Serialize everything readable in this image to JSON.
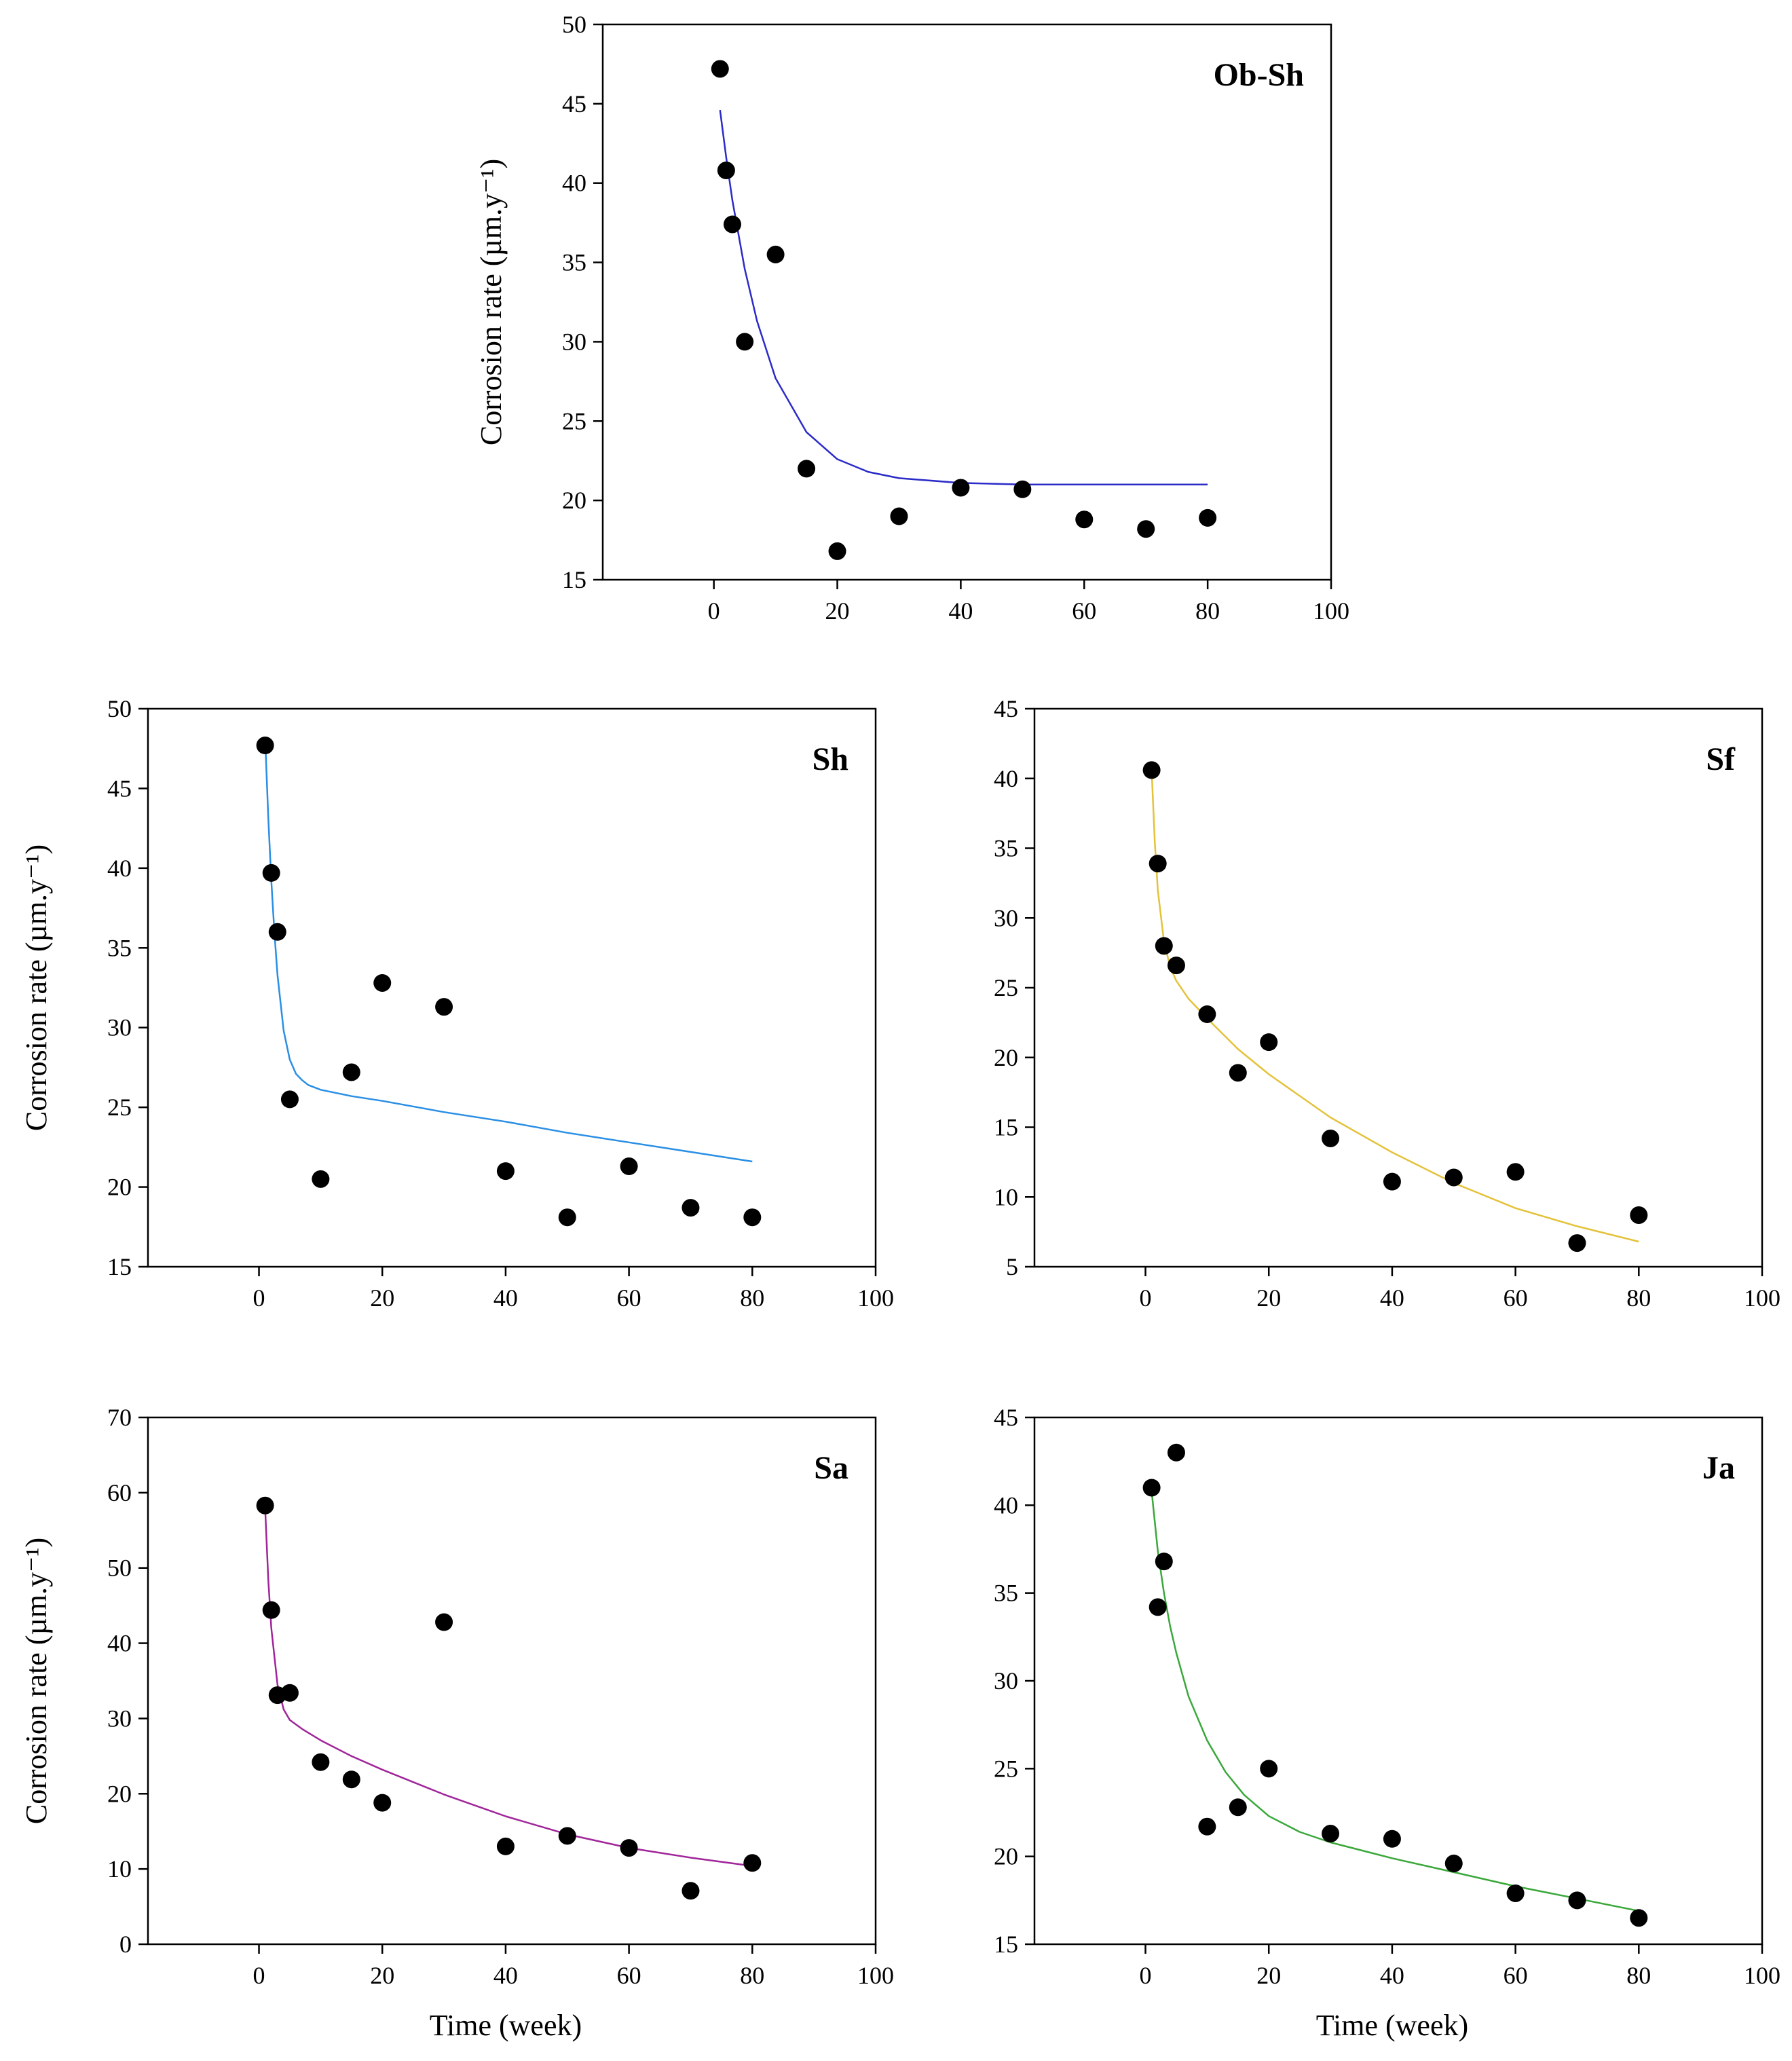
{
  "figure": {
    "x_axis_title": "Time (week)",
    "y_axis_title": "Corrosion rate (µm.y⁻¹)"
  },
  "chart_data": [
    {
      "id": "ob-sh",
      "type": "scatter",
      "title": "Ob-Sh",
      "xlabel": "",
      "ylabel": "Corrosion rate (µm.y⁻¹)",
      "xlim": [
        -18,
        100
      ],
      "ylim": [
        15,
        50
      ],
      "xticks": [
        0,
        20,
        40,
        60,
        80,
        100
      ],
      "yticks": [
        15,
        20,
        25,
        30,
        35,
        40,
        45,
        50
      ],
      "grid": false,
      "fit_color": "#2b2bc8",
      "series": [
        {
          "name": "measured",
          "x": [
            1,
            2,
            3,
            5,
            10,
            15,
            20,
            30,
            40,
            50,
            60,
            70,
            80
          ],
          "y": [
            47.2,
            40.8,
            37.4,
            30.0,
            35.5,
            22.0,
            16.8,
            19.0,
            20.8,
            20.7,
            18.8,
            18.2,
            18.9
          ]
        },
        {
          "name": "fit",
          "x": [
            1,
            2,
            3,
            5,
            7,
            10,
            15,
            20,
            25,
            30,
            40,
            50,
            60,
            70,
            80
          ],
          "y": [
            44.6,
            41.6,
            38.9,
            34.6,
            31.3,
            27.7,
            24.3,
            22.6,
            21.8,
            21.4,
            21.1,
            21.0,
            21.0,
            21.0,
            21.0
          ]
        }
      ]
    },
    {
      "id": "sh",
      "type": "scatter",
      "title": "Sh",
      "xlabel": "",
      "ylabel": "Corrosion rate (µm.y⁻¹)",
      "xlim": [
        -18,
        100
      ],
      "ylim": [
        15,
        50
      ],
      "xticks": [
        0,
        20,
        40,
        60,
        80,
        100
      ],
      "yticks": [
        15,
        20,
        25,
        30,
        35,
        40,
        45,
        50
      ],
      "grid": false,
      "fit_color": "#2a8fe4",
      "series": [
        {
          "name": "measured",
          "x": [
            1,
            2,
            3,
            5,
            10,
            15,
            20,
            30,
            40,
            50,
            60,
            70,
            80
          ],
          "y": [
            47.7,
            39.7,
            36.0,
            25.5,
            20.5,
            27.2,
            32.8,
            31.3,
            21.0,
            18.1,
            21.3,
            18.7,
            18.1
          ]
        },
        {
          "name": "fit",
          "x": [
            1,
            1.5,
            2,
            2.5,
            3,
            4,
            5,
            6,
            7,
            8,
            10,
            15,
            20,
            30,
            40,
            50,
            60,
            70,
            80
          ],
          "y": [
            48.2,
            43.2,
            39.2,
            36.0,
            33.3,
            29.8,
            28.0,
            27.1,
            26.7,
            26.4,
            26.1,
            25.7,
            25.4,
            24.7,
            24.1,
            23.4,
            22.8,
            22.2,
            21.6
          ]
        }
      ]
    },
    {
      "id": "sf",
      "type": "scatter",
      "title": "Sf",
      "xlabel": "",
      "ylabel": "",
      "xlim": [
        -18,
        100
      ],
      "ylim": [
        5,
        45
      ],
      "xticks": [
        0,
        20,
        40,
        60,
        80,
        100
      ],
      "yticks": [
        5,
        10,
        15,
        20,
        25,
        30,
        35,
        40,
        45
      ],
      "grid": false,
      "fit_color": "#e4c23a",
      "series": [
        {
          "name": "measured",
          "x": [
            1,
            2,
            3,
            5,
            10,
            15,
            20,
            30,
            40,
            50,
            60,
            70,
            80
          ],
          "y": [
            40.6,
            33.9,
            28.0,
            26.6,
            23.1,
            18.9,
            21.1,
            14.2,
            11.1,
            11.4,
            11.8,
            6.7,
            8.7
          ]
        },
        {
          "name": "fit",
          "x": [
            1,
            1.5,
            2,
            3,
            4,
            5,
            7,
            10,
            15,
            20,
            30,
            40,
            50,
            60,
            70,
            80
          ],
          "y": [
            40.6,
            35.5,
            32.0,
            28.3,
            26.5,
            25.5,
            24.2,
            22.8,
            20.6,
            18.8,
            15.7,
            13.2,
            11.0,
            9.2,
            7.9,
            6.8
          ]
        }
      ]
    },
    {
      "id": "sa",
      "type": "scatter",
      "title": "Sa",
      "xlabel": "Time (week)",
      "ylabel": "Corrosion rate (µm.y⁻¹)",
      "xlim": [
        -18,
        100
      ],
      "ylim": [
        0,
        70
      ],
      "xticks": [
        0,
        20,
        40,
        60,
        80,
        100
      ],
      "yticks": [
        0,
        10,
        20,
        30,
        40,
        50,
        60,
        70
      ],
      "grid": false,
      "fit_color": "#a0259a",
      "series": [
        {
          "name": "measured",
          "x": [
            1,
            2,
            3,
            5,
            10,
            15,
            20,
            30,
            40,
            50,
            60,
            70,
            80
          ],
          "y": [
            58.3,
            44.4,
            33.1,
            33.4,
            24.2,
            21.9,
            18.8,
            42.8,
            13.0,
            14.4,
            12.8,
            7.1,
            10.8
          ]
        },
        {
          "name": "fit",
          "x": [
            1,
            1.5,
            2,
            3,
            4,
            5,
            7,
            10,
            15,
            20,
            30,
            40,
            50,
            60,
            70,
            80
          ],
          "y": [
            58.0,
            48.5,
            42.0,
            34.5,
            31.2,
            29.8,
            28.6,
            27.1,
            25.0,
            23.2,
            19.9,
            17.0,
            14.6,
            12.8,
            11.5,
            10.4
          ]
        }
      ]
    },
    {
      "id": "ja",
      "type": "scatter",
      "title": "Ja",
      "xlabel": "Time (week)",
      "ylabel": "",
      "xlim": [
        -18,
        100
      ],
      "ylim": [
        15,
        45
      ],
      "xticks": [
        0,
        20,
        40,
        60,
        80,
        100
      ],
      "yticks": [
        15,
        20,
        25,
        30,
        35,
        40,
        45
      ],
      "grid": false,
      "fit_color": "#3aa83a",
      "series": [
        {
          "name": "measured",
          "x": [
            1,
            2,
            3,
            5,
            10,
            15,
            20,
            30,
            40,
            50,
            60,
            70,
            80
          ],
          "y": [
            41.0,
            34.2,
            36.8,
            43.0,
            21.7,
            22.8,
            25.0,
            21.3,
            21.0,
            19.6,
            17.9,
            17.5,
            16.5
          ]
        },
        {
          "name": "fit",
          "x": [
            1,
            2,
            3,
            4,
            5,
            7,
            10,
            13,
            16,
            20,
            25,
            30,
            40,
            50,
            60,
            70,
            80
          ],
          "y": [
            40.8,
            37.4,
            35.0,
            33.1,
            31.6,
            29.1,
            26.6,
            24.8,
            23.5,
            22.3,
            21.4,
            20.8,
            19.9,
            19.1,
            18.3,
            17.6,
            16.9
          ]
        }
      ]
    }
  ]
}
